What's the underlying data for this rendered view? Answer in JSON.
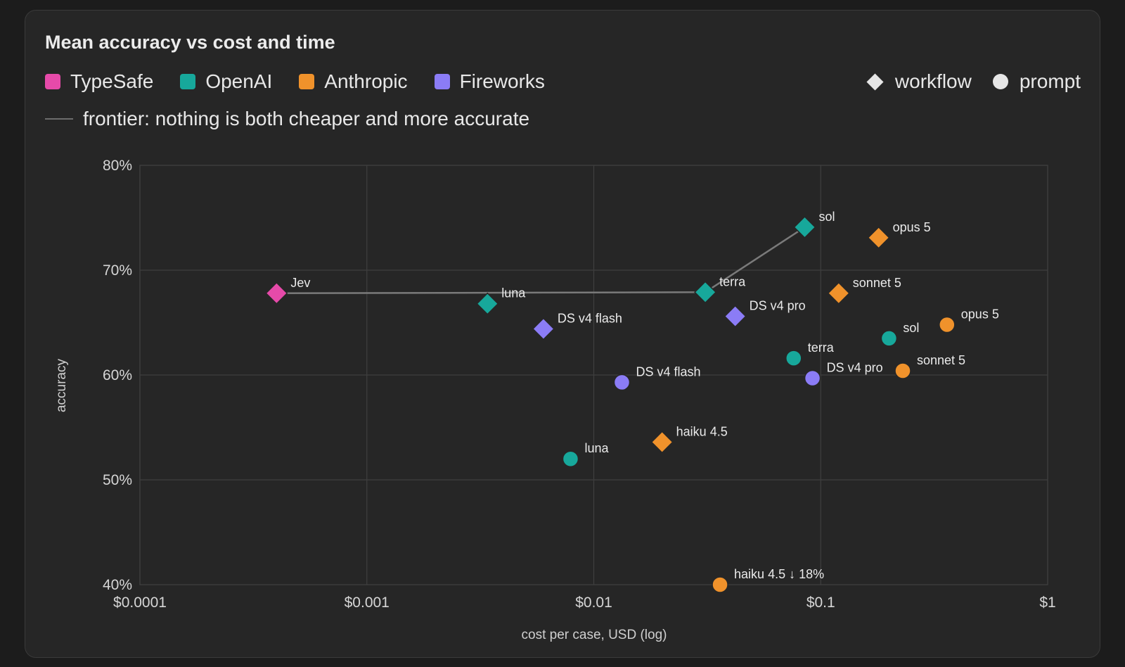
{
  "card": {
    "title": "Mean accuracy vs cost and time",
    "legend": {
      "providers": [
        {
          "label": "TypeSafe",
          "color": "#e64aa9"
        },
        {
          "label": "OpenAI",
          "color": "#17a89b"
        },
        {
          "label": "Anthropic",
          "color": "#f0922b"
        },
        {
          "label": "Fireworks",
          "color": "#8b7cf6"
        }
      ],
      "shapes": [
        {
          "label": "workflow",
          "icon": "diamond-icon"
        },
        {
          "label": "prompt",
          "icon": "circle-icon"
        }
      ],
      "frontier_label": "frontier: nothing is both cheaper and more accurate"
    }
  },
  "chart_data": {
    "type": "scatter",
    "title": "Mean accuracy vs cost and time",
    "xlabel": "cost per case, USD (log)",
    "ylabel": "accuracy",
    "x_scale": "log",
    "xlim": [
      0.0001,
      1
    ],
    "ylim": [
      40,
      80
    ],
    "x_ticks": [
      {
        "value": 0.0001,
        "label": "$0.0001"
      },
      {
        "value": 0.001,
        "label": "$0.001"
      },
      {
        "value": 0.01,
        "label": "$0.01"
      },
      {
        "value": 0.1,
        "label": "$0.1"
      },
      {
        "value": 1,
        "label": "$1"
      }
    ],
    "y_ticks": [
      {
        "value": 40,
        "label": "40%"
      },
      {
        "value": 50,
        "label": "50%"
      },
      {
        "value": 60,
        "label": "60%"
      },
      {
        "value": 70,
        "label": "70%"
      },
      {
        "value": 80,
        "label": "80%"
      }
    ],
    "grid": true,
    "points": [
      {
        "label": "Jev",
        "provider": "TypeSafe",
        "shape": "workflow",
        "x": 0.0004,
        "y": 67.8
      },
      {
        "label": "luna",
        "provider": "OpenAI",
        "shape": "workflow",
        "x": 0.0034,
        "y": 66.8
      },
      {
        "label": "DS v4 flash",
        "provider": "Fireworks",
        "shape": "workflow",
        "x": 0.006,
        "y": 64.4
      },
      {
        "label": "terra",
        "provider": "OpenAI",
        "shape": "workflow",
        "x": 0.031,
        "y": 67.9
      },
      {
        "label": "DS v4 pro",
        "provider": "Fireworks",
        "shape": "workflow",
        "x": 0.042,
        "y": 65.6
      },
      {
        "label": "sol",
        "provider": "OpenAI",
        "shape": "workflow",
        "x": 0.085,
        "y": 74.1
      },
      {
        "label": "sonnet 5",
        "provider": "Anthropic",
        "shape": "workflow",
        "x": 0.12,
        "y": 67.8
      },
      {
        "label": "opus 5",
        "provider": "Anthropic",
        "shape": "workflow",
        "x": 0.18,
        "y": 73.1
      },
      {
        "label": "haiku 4.5",
        "provider": "Anthropic",
        "shape": "workflow",
        "x": 0.02,
        "y": 53.6
      },
      {
        "label": "luna",
        "provider": "OpenAI",
        "shape": "prompt",
        "x": 0.0079,
        "y": 52.0
      },
      {
        "label": "DS v4 flash",
        "provider": "Fireworks",
        "shape": "prompt",
        "x": 0.0133,
        "y": 59.3
      },
      {
        "label": "haiku 4.5 ↓ 18%",
        "provider": "Anthropic",
        "shape": "prompt",
        "x": 0.036,
        "y": 40.0
      },
      {
        "label": "terra",
        "provider": "OpenAI",
        "shape": "prompt",
        "x": 0.076,
        "y": 61.6
      },
      {
        "label": "DS v4 pro",
        "provider": "Fireworks",
        "shape": "prompt",
        "x": 0.092,
        "y": 59.7
      },
      {
        "label": "sol",
        "provider": "OpenAI",
        "shape": "prompt",
        "x": 0.2,
        "y": 63.5
      },
      {
        "label": "sonnet 5",
        "provider": "Anthropic",
        "shape": "prompt",
        "x": 0.23,
        "y": 60.4
      },
      {
        "label": "opus 5",
        "provider": "Anthropic",
        "shape": "prompt",
        "x": 0.36,
        "y": 64.8
      }
    ],
    "frontier": [
      {
        "x": 0.0004,
        "y": 67.8
      },
      {
        "x": 0.031,
        "y": 67.9
      },
      {
        "x": 0.085,
        "y": 74.1
      }
    ]
  }
}
